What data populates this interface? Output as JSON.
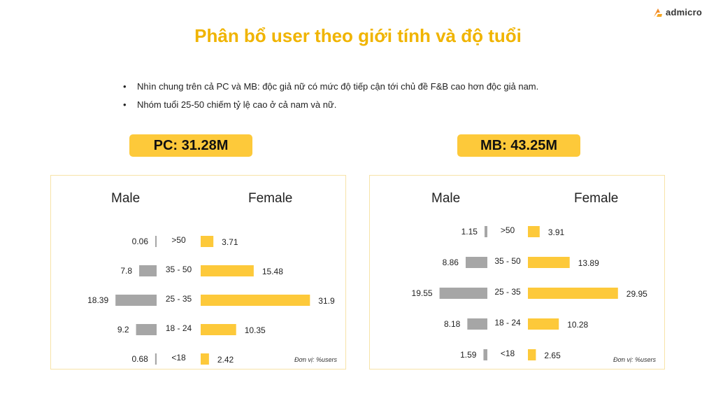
{
  "brand": {
    "name": "admicro"
  },
  "title": "Phân bổ user theo giới tính và độ tuổi",
  "bullets": [
    "Nhìn chung trên cả PC và MB: độc giả nữ có mức độ tiếp cận tới chủ đề F&B cao hơn độc giả nam.",
    "Nhóm tuổi 25-50 chiếm tỷ lệ cao ở cả nam và nữ."
  ],
  "colors": {
    "title": "#F0B400",
    "badge": "#FDC93A",
    "male_bar": "#A6A6A6",
    "female_bar": "#FDC93A",
    "panel_border": "#F7E3A8"
  },
  "chart_data": [
    {
      "type": "bar",
      "orientation": "horizontal-butterfly",
      "title": "PC: 31.28M",
      "categories": [
        ">50",
        "35 - 50",
        "25 - 35",
        "18 - 24",
        "<18"
      ],
      "series": [
        {
          "name": "Male",
          "values": [
            0.06,
            7.8,
            18.39,
            9.2,
            0.68
          ]
        },
        {
          "name": "Female",
          "values": [
            3.71,
            15.48,
            31.9,
            10.35,
            2.42
          ]
        }
      ],
      "unit_note": "Đơn vị: %users"
    },
    {
      "type": "bar",
      "orientation": "horizontal-butterfly",
      "title": "MB: 43.25M",
      "categories": [
        ">50",
        "35 - 50",
        "25 - 35",
        "18 - 24",
        "<18"
      ],
      "series": [
        {
          "name": "Male",
          "values": [
            1.15,
            8.86,
            19.55,
            8.18,
            1.59
          ]
        },
        {
          "name": "Female",
          "values": [
            3.91,
            13.89,
            29.95,
            10.28,
            2.65
          ]
        }
      ],
      "unit_note": "Đơn vị: %users"
    }
  ]
}
